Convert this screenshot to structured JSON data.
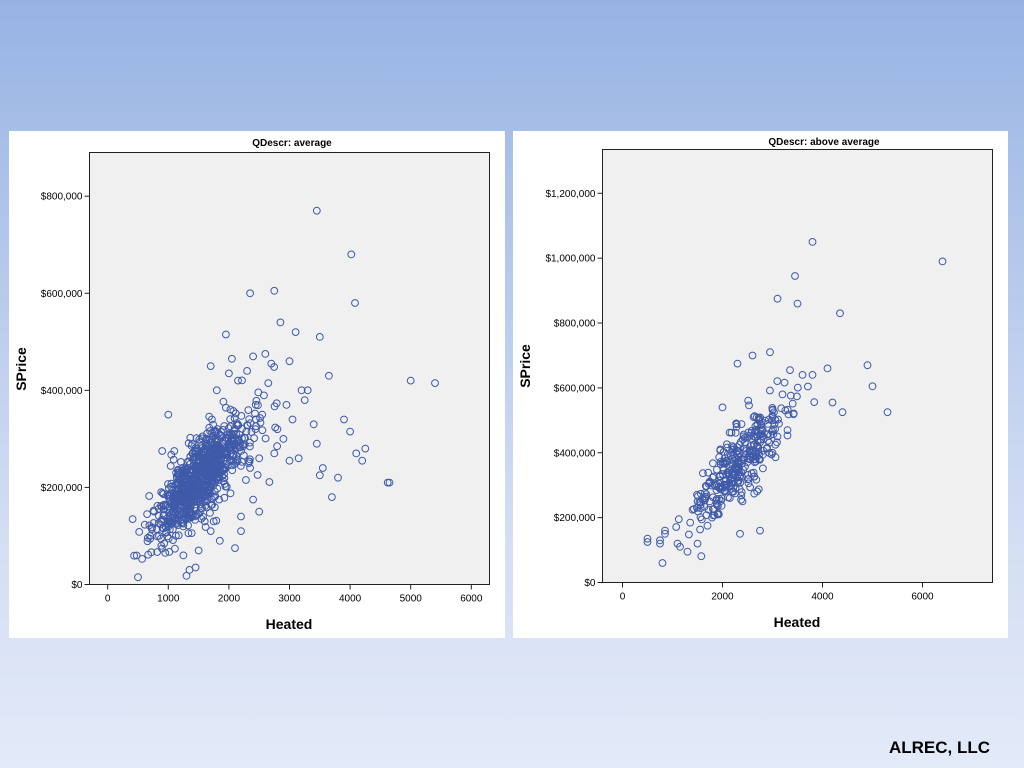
{
  "footer": {
    "credit": "ALREC, LLC"
  },
  "chart_data": [
    {
      "type": "scatter",
      "title": "QDescr: average",
      "xlabel": "Heated",
      "ylabel": "SPrice",
      "xlim": [
        -300,
        6300
      ],
      "ylim": [
        0,
        890000
      ],
      "xticks": [
        0,
        1000,
        2000,
        3000,
        4000,
        5000,
        6000
      ],
      "xtick_labels": [
        "0",
        "1000",
        "2000",
        "3000",
        "4000",
        "5000",
        "6000"
      ],
      "yticks": [
        0,
        200000,
        400000,
        600000,
        800000
      ],
      "ytick_labels": [
        "$0",
        "$200,000",
        "$400,000",
        "$600,000",
        "$800,000"
      ],
      "grid": false,
      "legend": "none",
      "marker_color": "#3f5aa8",
      "outliers": [
        [
          3450,
          770000
        ],
        [
          4020,
          680000
        ],
        [
          4080,
          580000
        ],
        [
          2750,
          605000
        ],
        [
          2350,
          600000
        ],
        [
          2850,
          540000
        ],
        [
          1950,
          515000
        ],
        [
          3100,
          520000
        ],
        [
          3500,
          510000
        ],
        [
          5000,
          420000
        ],
        [
          5400,
          415000
        ],
        [
          3650,
          430000
        ],
        [
          3900,
          340000
        ],
        [
          4000,
          315000
        ],
        [
          4250,
          280000
        ],
        [
          4100,
          270000
        ],
        [
          4200,
          255000
        ],
        [
          4650,
          210000
        ],
        [
          4620,
          210000
        ],
        [
          3800,
          220000
        ],
        [
          3700,
          180000
        ],
        [
          3550,
          240000
        ],
        [
          3450,
          290000
        ],
        [
          3500,
          225000
        ],
        [
          2500,
          150000
        ],
        [
          2100,
          75000
        ],
        [
          500,
          15000
        ],
        [
          1300,
          18000
        ],
        [
          1350,
          30000
        ],
        [
          1450,
          35000
        ],
        [
          1000,
          350000
        ],
        [
          1100,
          275000
        ],
        [
          900,
          275000
        ],
        [
          3000,
          460000
        ],
        [
          3200,
          400000
        ],
        [
          2600,
          475000
        ],
        [
          2700,
          455000
        ],
        [
          2400,
          470000
        ],
        [
          2300,
          440000
        ],
        [
          1700,
          450000
        ],
        [
          2050,
          465000
        ],
        [
          3000,
          255000
        ],
        [
          3150,
          260000
        ],
        [
          3300,
          400000
        ],
        [
          2950,
          370000
        ],
        [
          1850,
          90000
        ],
        [
          1700,
          110000
        ],
        [
          1500,
          70000
        ],
        [
          2400,
          175000
        ],
        [
          2200,
          140000
        ],
        [
          1250,
          60000
        ],
        [
          950,
          65000
        ],
        [
          650,
          145000
        ],
        [
          700,
          100000
        ],
        [
          1750,
          130000
        ],
        [
          2800,
          320000
        ],
        [
          2900,
          300000
        ],
        [
          3400,
          330000
        ],
        [
          2650,
          415000
        ],
        [
          2000,
          435000
        ],
        [
          2150,
          420000
        ],
        [
          1800,
          400000
        ],
        [
          3250,
          380000
        ],
        [
          3050,
          340000
        ],
        [
          2550,
          350000
        ],
        [
          2350,
          240000
        ],
        [
          2500,
          260000
        ],
        [
          2750,
          270000
        ],
        [
          2200,
          110000
        ],
        [
          1600,
          130000
        ]
      ],
      "clusters": [
        {
          "cx": 1400,
          "cy": 200000,
          "sx": 320,
          "sy": 55000,
          "rho": 0.75,
          "n": 650
        },
        {
          "cx": 1900,
          "cy": 270000,
          "sx": 380,
          "sy": 60000,
          "rho": 0.65,
          "n": 230
        }
      ]
    },
    {
      "type": "scatter",
      "title": "QDescr: above average",
      "xlabel": "Heated",
      "ylabel": "SPrice",
      "xlim": [
        -400,
        7400
      ],
      "ylim": [
        0,
        1335000
      ],
      "xticks": [
        0,
        2000,
        4000,
        6000
      ],
      "xtick_labels": [
        "0",
        "2000",
        "4000",
        "6000"
      ],
      "yticks": [
        0,
        200000,
        400000,
        600000,
        800000,
        1000000,
        1200000
      ],
      "ytick_labels": [
        "$0",
        "$200,000",
        "$400,000",
        "$600,000",
        "$800,000",
        "$1,000,000",
        "$1,200,000"
      ],
      "grid": false,
      "legend": "none",
      "marker_color": "#3f5aa8",
      "outliers": [
        [
          3800,
          1050000
        ],
        [
          6400,
          990000
        ],
        [
          3450,
          945000
        ],
        [
          3100,
          875000
        ],
        [
          3500,
          860000
        ],
        [
          4350,
          830000
        ],
        [
          2950,
          710000
        ],
        [
          2600,
          700000
        ],
        [
          2300,
          675000
        ],
        [
          4100,
          660000
        ],
        [
          4900,
          670000
        ],
        [
          3800,
          640000
        ],
        [
          3600,
          640000
        ],
        [
          5000,
          605000
        ],
        [
          4200,
          555000
        ],
        [
          4400,
          525000
        ],
        [
          5300,
          525000
        ],
        [
          2000,
          540000
        ],
        [
          2750,
          160000
        ],
        [
          2350,
          150000
        ],
        [
          800,
          60000
        ],
        [
          1300,
          95000
        ],
        [
          1500,
          120000
        ],
        [
          1100,
          120000
        ],
        [
          1150,
          110000
        ],
        [
          500,
          135000
        ],
        [
          500,
          125000
        ],
        [
          750,
          130000
        ],
        [
          750,
          120000
        ],
        [
          850,
          160000
        ],
        [
          850,
          150000
        ],
        [
          1700,
          175000
        ],
        [
          1900,
          210000
        ],
        [
          2400,
          250000
        ],
        [
          3000,
          400000
        ],
        [
          3300,
          470000
        ],
        [
          3100,
          450000
        ],
        [
          2800,
          470000
        ],
        [
          3350,
          655000
        ],
        [
          3200,
          580000
        ]
      ],
      "clusters": [
        {
          "cx": 2300,
          "cy": 360000,
          "sx": 500,
          "sy": 95000,
          "rho": 0.85,
          "n": 330
        }
      ]
    }
  ]
}
